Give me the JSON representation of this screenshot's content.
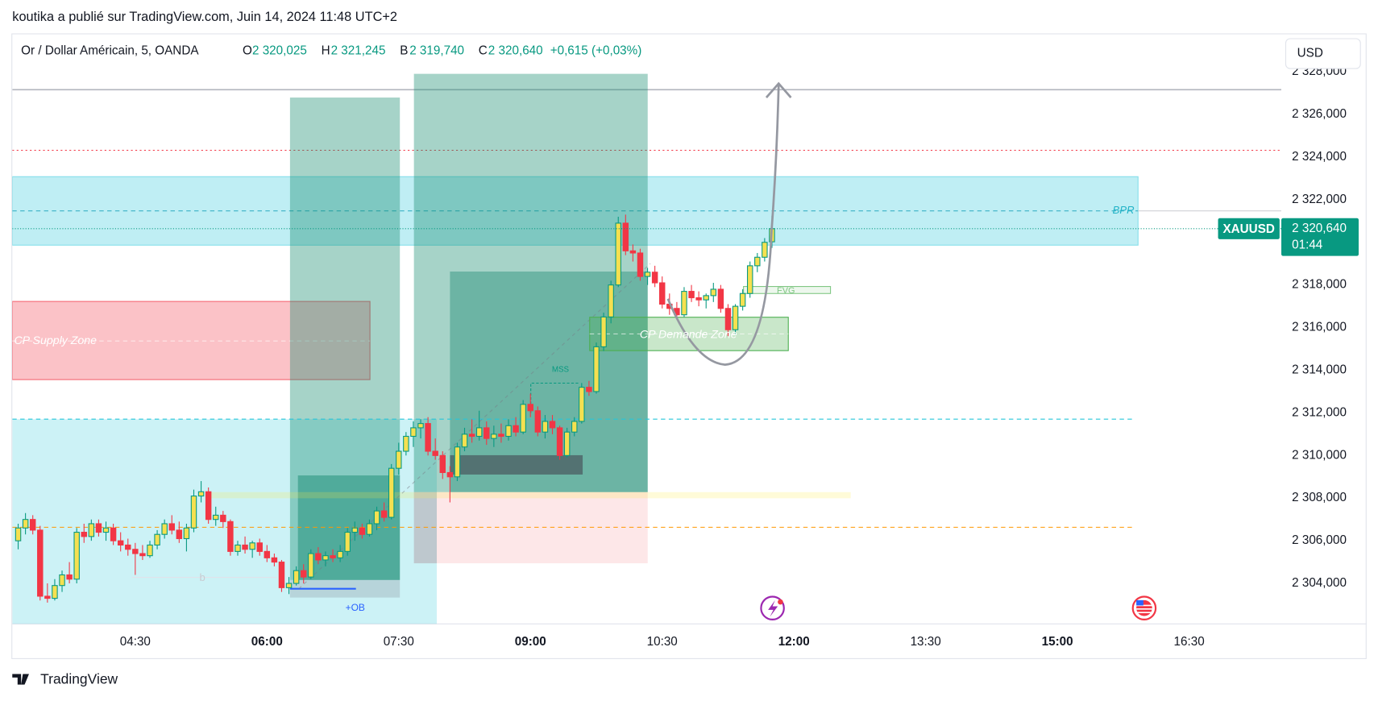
{
  "page": {
    "byline": "koutika a publié sur TradingView.com, Juin 14, 2024 11:48 UTC+2",
    "brand": "TradingView",
    "currency": "USD"
  },
  "chart_data": {
    "type": "candlestick",
    "title": "Or / Dollar Américain, 5, OANDA",
    "ohlc_header": [
      {
        "key": "O",
        "value": "2 320,025"
      },
      {
        "key": "H",
        "value": "2 321,245"
      },
      {
        "key": "B",
        "value": "2 319,740"
      },
      {
        "key": "C",
        "value": "2 320,640"
      }
    ],
    "change": "+0,615 (+0,03%)",
    "symbol": "XAUUSD",
    "last_price": {
      "value": 2320.64,
      "label": "2 320,640"
    },
    "countdown": "01:44",
    "up_color": "#f5e050",
    "up_border": "#089981",
    "down_color": "#f23645",
    "grid": false,
    "xlim": [
      186,
      1053
    ],
    "xticks": [
      {
        "value": 270,
        "label": "04:30"
      },
      {
        "value": 360,
        "label": "06:00"
      },
      {
        "value": 450,
        "label": "07:30"
      },
      {
        "value": 540,
        "label": "09:00"
      },
      {
        "value": 630,
        "label": "10:30"
      },
      {
        "value": 720,
        "label": "12:00"
      },
      {
        "value": 810,
        "label": "13:30"
      },
      {
        "value": 900,
        "label": "15:00"
      },
      {
        "value": 990,
        "label": "16:30"
      }
    ],
    "ylim": [
      2302.1,
      2329.8
    ],
    "yticks": [
      {
        "value": 2304,
        "label": "2 304,000"
      },
      {
        "value": 2306,
        "label": "2 306,000"
      },
      {
        "value": 2308,
        "label": "2 308,000"
      },
      {
        "value": 2310,
        "label": "2 310,000"
      },
      {
        "value": 2312,
        "label": "2 312,000"
      },
      {
        "value": 2314,
        "label": "2 314,000"
      },
      {
        "value": 2316,
        "label": "2 316,000"
      },
      {
        "value": 2318,
        "label": "2 318,000"
      },
      {
        "value": 2320,
        "label": "2 320,000"
      },
      {
        "value": 2322,
        "label": "2 322,000"
      },
      {
        "value": 2324,
        "label": "2 324,000"
      },
      {
        "value": 2326,
        "label": "2 326,000"
      },
      {
        "value": 2328,
        "label": "2 328,000"
      }
    ],
    "x": [
      190,
      195,
      200,
      205,
      210,
      215,
      220,
      225,
      230,
      235,
      240,
      245,
      250,
      255,
      260,
      265,
      270,
      275,
      280,
      285,
      290,
      295,
      300,
      305,
      310,
      315,
      320,
      325,
      330,
      335,
      340,
      345,
      350,
      355,
      360,
      365,
      370,
      375,
      380,
      385,
      390,
      395,
      400,
      405,
      410,
      415,
      420,
      425,
      430,
      435,
      440,
      445,
      450,
      455,
      460,
      465,
      470,
      475,
      480,
      485,
      490,
      495,
      500,
      505,
      510,
      515,
      520,
      525,
      530,
      535,
      540,
      545,
      550,
      555,
      560,
      565,
      570,
      575,
      580,
      585,
      590,
      595,
      600,
      605,
      610,
      615,
      620,
      625,
      630,
      635,
      640,
      645,
      650,
      655,
      660,
      665,
      670,
      675,
      680,
      685,
      690,
      695,
      700,
      705
    ],
    "open": [
      2306.0,
      2306.6,
      2307.0,
      2306.5,
      2303.4,
      2303.3,
      2303.9,
      2304.4,
      2304.2,
      2306.4,
      2306.2,
      2306.8,
      2306.4,
      2306.6,
      2306.0,
      2305.8,
      2305.6,
      2305.4,
      2305.3,
      2305.8,
      2306.3,
      2306.8,
      2306.5,
      2306.1,
      2306.6,
      2308.1,
      2308.3,
      2307.0,
      2307.2,
      2306.9,
      2305.5,
      2305.8,
      2305.6,
      2305.9,
      2305.5,
      2305.2,
      2305.0,
      2303.8,
      2304.0,
      2304.6,
      2304.3,
      2305.4,
      2305.1,
      2305.3,
      2305.2,
      2305.5,
      2306.4,
      2306.6,
      2306.3,
      2306.8,
      2307.4,
      2307.1,
      2309.4,
      2310.2,
      2310.9,
      2311.3,
      2311.5,
      2310.2,
      2310.0,
      2309.2,
      2309.0,
      2310.4,
      2311.0,
      2310.9,
      2311.3,
      2310.8,
      2311.0,
      2310.9,
      2311.4,
      2311.1,
      2312.4,
      2312.1,
      2311.1,
      2311.6,
      2311.3,
      2310.0,
      2311.1,
      2311.6,
      2313.2,
      2313.0,
      2315.1,
      2316.5,
      2318.0,
      2320.9,
      2319.6,
      2319.5,
      2318.4,
      2318.6,
      2318.1,
      2317.1,
      2316.9,
      2316.6,
      2317.7,
      2317.4,
      2317.3,
      2317.5,
      2317.8,
      2316.9,
      2315.9,
      2317.0,
      2317.6,
      2318.9,
      2319.3,
      2320.025
    ],
    "high": [
      2306.8,
      2307.3,
      2307.2,
      2306.7,
      2304.0,
      2304.2,
      2304.6,
      2305.0,
      2306.6,
      2306.8,
      2307.0,
      2307.0,
      2306.9,
      2306.8,
      2306.4,
      2306.1,
      2305.9,
      2305.8,
      2306.0,
      2306.5,
      2307.0,
      2307.2,
      2306.9,
      2306.8,
      2308.4,
      2308.8,
      2308.5,
      2307.6,
      2307.4,
      2307.0,
      2306.0,
      2306.2,
      2306.0,
      2306.1,
      2305.8,
      2305.4,
      2305.1,
      2304.3,
      2304.8,
      2304.9,
      2305.6,
      2305.7,
      2305.5,
      2305.6,
      2305.8,
      2306.6,
      2306.9,
      2306.8,
      2307.0,
      2307.6,
      2307.8,
      2309.6,
      2310.6,
      2311.1,
      2311.6,
      2311.7,
      2311.8,
      2310.8,
      2310.2,
      2309.5,
      2310.6,
      2311.3,
      2311.7,
      2312.1,
      2311.6,
      2311.4,
      2311.5,
      2311.7,
      2311.8,
      2312.6,
      2312.9,
      2312.3,
      2311.9,
      2311.9,
      2311.4,
      2311.3,
      2311.8,
      2313.4,
      2313.5,
      2315.3,
      2316.7,
      2318.2,
      2321.2,
      2321.3,
      2319.9,
      2319.7,
      2318.8,
      2318.9,
      2318.4,
      2317.6,
      2317.2,
      2317.9,
      2318.0,
      2317.7,
      2317.6,
      2318.1,
      2318.0,
      2317.1,
      2317.1,
      2317.8,
      2319.1,
      2319.5,
      2320.2,
      2321.245
    ],
    "low": [
      2305.6,
      2306.3,
      2306.3,
      2303.2,
      2303.1,
      2303.2,
      2303.6,
      2304.0,
      2304.0,
      2305.9,
      2306.0,
      2306.2,
      2306.0,
      2305.8,
      2305.5,
      2305.3,
      2304.4,
      2305.1,
      2305.2,
      2305.6,
      2306.1,
      2306.3,
      2305.9,
      2305.5,
      2306.4,
      2307.8,
      2306.8,
      2306.7,
      2306.6,
      2305.3,
      2305.3,
      2305.4,
      2305.2,
      2305.3,
      2305.0,
      2304.8,
      2303.6,
      2303.5,
      2303.9,
      2304.0,
      2304.2,
      2304.9,
      2304.8,
      2305.0,
      2305.0,
      2305.3,
      2306.0,
      2306.1,
      2306.2,
      2306.5,
      2306.9,
      2307.0,
      2309.1,
      2310.0,
      2310.4,
      2310.8,
      2310.0,
      2309.8,
      2308.9,
      2307.8,
      2308.8,
      2310.2,
      2310.6,
      2310.7,
      2310.5,
      2310.4,
      2310.6,
      2310.7,
      2310.9,
      2311.0,
      2311.8,
      2310.9,
      2310.8,
      2311.0,
      2309.8,
      2309.9,
      2310.9,
      2311.5,
      2312.8,
      2312.9,
      2314.9,
      2316.2,
      2317.9,
      2319.4,
      2319.1,
      2318.2,
      2318.0,
      2317.9,
      2316.9,
      2316.6,
      2316.4,
      2316.5,
      2317.2,
      2317.0,
      2316.9,
      2317.2,
      2316.7,
      2315.6,
      2315.7,
      2316.8,
      2317.4,
      2318.6,
      2319.1,
      2319.74
    ],
    "close": [
      2306.6,
      2307.0,
      2306.5,
      2303.4,
      2303.3,
      2303.9,
      2304.4,
      2304.2,
      2306.4,
      2306.2,
      2306.8,
      2306.4,
      2306.6,
      2306.0,
      2305.8,
      2305.6,
      2305.4,
      2305.3,
      2305.8,
      2306.3,
      2306.8,
      2306.5,
      2306.1,
      2306.6,
      2308.1,
      2308.3,
      2307.0,
      2307.2,
      2306.9,
      2305.5,
      2305.8,
      2305.6,
      2305.9,
      2305.5,
      2305.2,
      2305.0,
      2303.8,
      2304.0,
      2304.6,
      2304.3,
      2305.4,
      2305.1,
      2305.3,
      2305.2,
      2305.5,
      2306.4,
      2306.6,
      2306.3,
      2306.8,
      2307.4,
      2307.1,
      2309.4,
      2310.2,
      2310.9,
      2311.3,
      2311.5,
      2310.2,
      2310.0,
      2309.2,
      2309.0,
      2310.4,
      2311.0,
      2310.9,
      2311.3,
      2310.8,
      2311.0,
      2310.9,
      2311.4,
      2311.1,
      2312.4,
      2312.1,
      2311.1,
      2311.6,
      2311.3,
      2310.0,
      2311.1,
      2311.6,
      2313.2,
      2313.0,
      2315.1,
      2316.5,
      2318.0,
      2320.9,
      2319.6,
      2319.5,
      2318.4,
      2318.6,
      2318.1,
      2317.1,
      2316.9,
      2316.6,
      2317.7,
      2317.4,
      2317.3,
      2317.5,
      2317.8,
      2316.9,
      2315.9,
      2317.0,
      2317.6,
      2318.9,
      2319.3,
      2320.0,
      2320.64
    ],
    "annotations": {
      "supply": "CP Supply Zone",
      "demand": "CP Demande Zone",
      "bpr": "BPR",
      "fvg": "FVG",
      "mss": "MSS",
      "ob": "+OB",
      "b": "b"
    }
  }
}
